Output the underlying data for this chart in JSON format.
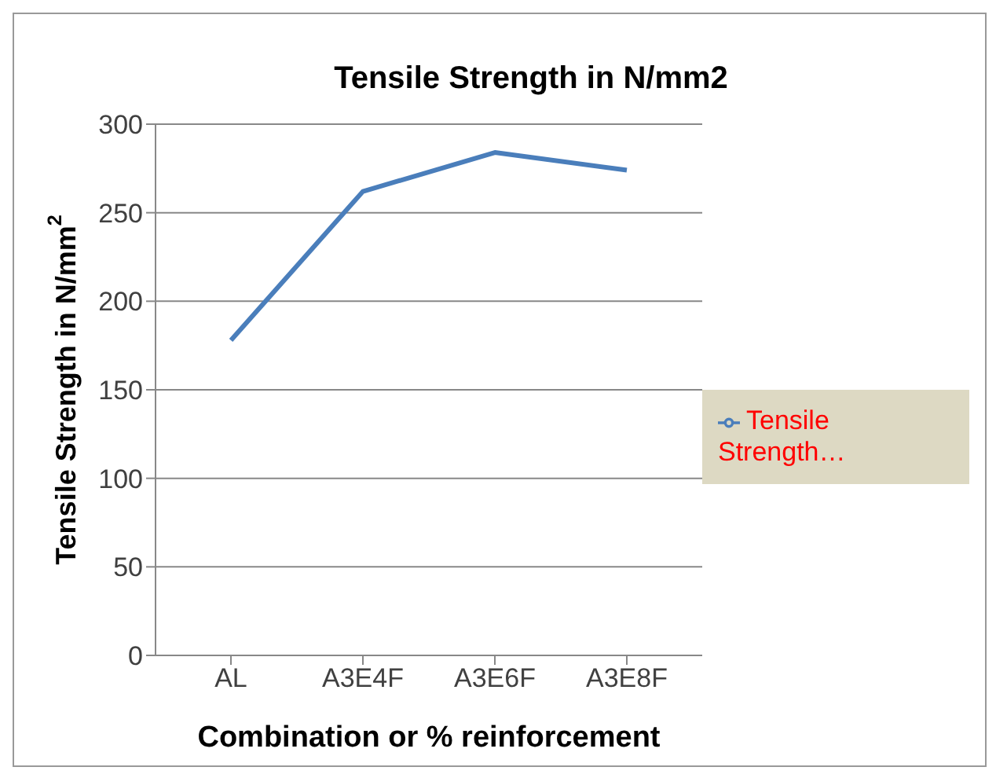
{
  "chart_data": {
    "type": "line",
    "title": "Tensile Strength in N/mm2",
    "xlabel": "Combination    or   % reinforcement",
    "ylabel": "Tensile Strength in N/mm$^{2}$",
    "categories": [
      "AL",
      "A3E4F",
      "A3E6F",
      "A3E8F"
    ],
    "series": [
      {
        "name": "Tensile Strength…",
        "color": "#4a7ebb",
        "values": [
          178,
          262,
          284,
          274
        ]
      }
    ],
    "ylim": [
      0,
      300
    ],
    "yticks": [
      0,
      50,
      100,
      150,
      200,
      250,
      300
    ],
    "grid": "y",
    "legend": "right",
    "marker": "none"
  }
}
